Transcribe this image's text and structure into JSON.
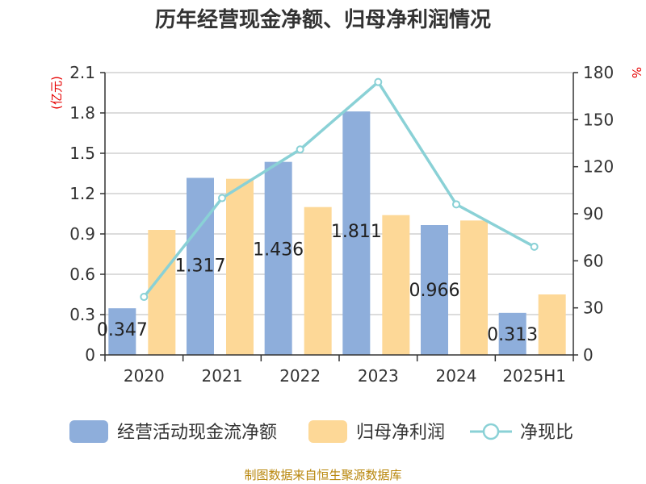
{
  "title": "历年经营现金净额、归母净利润情况",
  "source": "制图数据来自恒生聚源数据库",
  "chart_data": {
    "type": "bar",
    "categories": [
      "2020",
      "2021",
      "2022",
      "2023",
      "2024",
      "2025H1"
    ],
    "series": [
      {
        "name": "经营活动现金流净额",
        "type": "bar",
        "axis": "left",
        "color": "#8eaedb",
        "values": [
          0.347,
          1.317,
          1.436,
          1.811,
          0.966,
          0.313
        ],
        "labels": [
          "0.347",
          "1.317",
          "1.436",
          "1.811",
          "0.966",
          "0.313"
        ]
      },
      {
        "name": "归母净利润",
        "type": "bar",
        "axis": "left",
        "color": "#fdd897",
        "values": [
          0.93,
          1.31,
          1.1,
          1.04,
          1.0,
          0.45
        ]
      },
      {
        "name": "净现比",
        "type": "line",
        "axis": "right",
        "color": "#8ad1d6",
        "values": [
          37,
          100,
          131,
          174,
          96,
          69
        ]
      }
    ],
    "y_left": {
      "label": "(亿元)",
      "min": 0,
      "max": 2.1,
      "ticks": [
        "0",
        "0.3",
        "0.6",
        "0.9",
        "1.2",
        "1.5",
        "1.8",
        "2.1"
      ]
    },
    "y_right": {
      "label": "%",
      "min": 0,
      "max": 180,
      "ticks": [
        "0",
        "30",
        "60",
        "90",
        "120",
        "150",
        "180"
      ]
    },
    "grid": true,
    "legend_position": "bottom"
  }
}
